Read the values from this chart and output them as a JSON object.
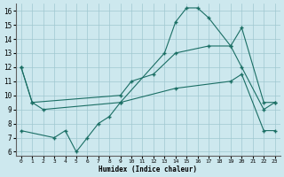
{
  "xlabel": "Humidex (Indice chaleur)",
  "xlim": [
    -0.5,
    23.5
  ],
  "ylim": [
    5.7,
    16.5
  ],
  "yticks": [
    6,
    7,
    8,
    9,
    10,
    11,
    12,
    13,
    14,
    15,
    16
  ],
  "xticks": [
    0,
    1,
    2,
    3,
    4,
    5,
    6,
    7,
    8,
    9,
    10,
    11,
    12,
    13,
    14,
    15,
    16,
    17,
    18,
    19,
    20,
    21,
    22,
    23
  ],
  "bg_color": "#cde8ee",
  "grid_color": "#a0c8d0",
  "line_color": "#1a6e64",
  "line1_x": [
    0,
    1,
    2,
    9,
    13,
    14,
    15,
    16,
    17,
    19,
    20,
    22,
    23
  ],
  "line1_y": [
    12,
    9.5,
    9.0,
    9.5,
    13.0,
    15.2,
    16.2,
    16.2,
    15.5,
    13.5,
    12.0,
    9.0,
    9.5
  ],
  "line2_x": [
    0,
    1,
    9,
    10,
    12,
    14,
    17,
    19,
    20,
    22,
    23
  ],
  "line2_y": [
    12,
    9.5,
    10.0,
    11.0,
    11.5,
    13.0,
    13.5,
    13.5,
    14.8,
    9.5,
    9.5
  ],
  "line3_x": [
    0,
    3,
    4,
    5,
    6,
    7,
    8,
    9,
    14,
    19,
    20,
    22,
    23
  ],
  "line3_y": [
    7.5,
    7.0,
    7.5,
    6.0,
    7.0,
    8.0,
    8.5,
    9.5,
    10.5,
    11.0,
    11.5,
    7.5,
    7.5
  ]
}
